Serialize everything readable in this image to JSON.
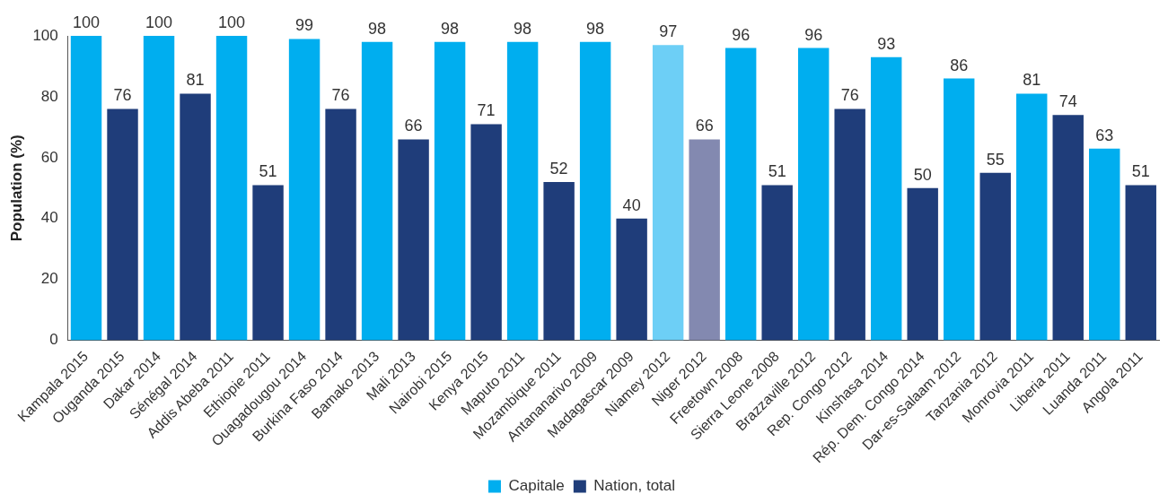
{
  "chart_data": {
    "type": "bar",
    "ylabel": "Population (%)",
    "categories": [
      "Kampala 2015",
      "Ouganda 2015",
      "Dakar 2014",
      "Sénégal 2014",
      "Addis Abeba 2011",
      "Ethiopie 2011",
      "Ouagadougou 2014",
      "Burkina Faso 2014",
      "Bamako 2013",
      "Mali 2013",
      "Nairobi 2015",
      "Kenya 2015",
      "Maputo 2011",
      "Mozambique 2011",
      "Antananarivo 2009",
      "Madagascar 2009",
      "Niamey 2012",
      "Niger 2012",
      "Freetown 2008",
      "Sierra Leone 2008",
      "Brazzaville 2012",
      "Rep. Congo 2012",
      "Kinshasa 2014",
      "Rép. Dem. Congo 2014",
      "Dar-es-Salaam 2012",
      "Tanzania 2012",
      "Monrovia 2011",
      "Liberia 2011",
      "Luanda 2011",
      "Angola 2011"
    ],
    "series": [
      {
        "name": "Capitale",
        "color": "#00aeef",
        "values": [
          100,
          null,
          100,
          null,
          100,
          null,
          99,
          null,
          98,
          null,
          98,
          null,
          98,
          null,
          98,
          null,
          97,
          null,
          96,
          null,
          96,
          null,
          93,
          null,
          86,
          null,
          81,
          null,
          63,
          null
        ],
        "colors": [
          "#00aeef",
          null,
          "#00aeef",
          null,
          "#00aeef",
          null,
          "#00aeef",
          null,
          "#00aeef",
          null,
          "#00aeef",
          null,
          "#00aeef",
          null,
          "#00aeef",
          null,
          "#6dcff6",
          null,
          "#00aeef",
          null,
          "#00aeef",
          null,
          "#00aeef",
          null,
          "#00aeef",
          null,
          "#00aeef",
          null,
          "#00aeef",
          null
        ]
      },
      {
        "name": "Nation, total",
        "color": "#1f3d7a",
        "values": [
          null,
          76,
          null,
          81,
          null,
          51,
          null,
          76,
          null,
          66,
          null,
          71,
          null,
          52,
          null,
          40,
          null,
          66,
          null,
          51,
          null,
          76,
          null,
          50,
          null,
          55,
          null,
          74,
          null,
          51
        ],
        "colors": [
          null,
          "#1f3d7a",
          null,
          "#1f3d7a",
          null,
          "#1f3d7a",
          null,
          "#1f3d7a",
          null,
          "#1f3d7a",
          null,
          "#1f3d7a",
          null,
          "#1f3d7a",
          null,
          "#1f3d7a",
          null,
          "#8389b0",
          null,
          "#1f3d7a",
          null,
          "#1f3d7a",
          null,
          "#1f3d7a",
          null,
          "#1f3d7a",
          null,
          "#1f3d7a",
          null,
          "#1f3d7a"
        ]
      }
    ],
    "ylim": [
      0,
      100
    ],
    "yticks": [
      0,
      20,
      40,
      60,
      80,
      100
    ],
    "grid": false,
    "legend": "bottom",
    "data_labels": true
  }
}
